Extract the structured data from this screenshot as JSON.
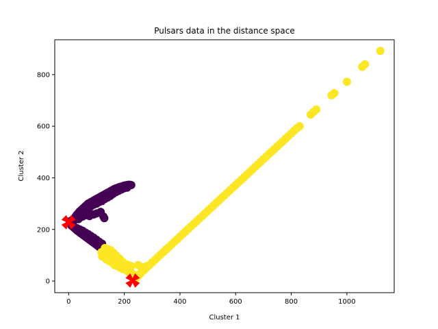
{
  "chart_data": {
    "type": "scatter",
    "title": "Pulsars data in the distance space",
    "xlabel": "Cluster 1",
    "ylabel": "Cluster 2",
    "xlim": [
      -50,
      1170
    ],
    "ylim": [
      -45,
      935
    ],
    "xticks": [
      0,
      200,
      400,
      600,
      800,
      1000
    ],
    "yticks": [
      0,
      200,
      400,
      600,
      800
    ],
    "grid": false,
    "series": [
      {
        "cluster": 0,
        "color": "#440154",
        "points": [
          [
            4,
            232
          ],
          [
            8,
            228
          ],
          [
            12,
            236
          ],
          [
            15,
            224
          ],
          [
            18,
            240
          ],
          [
            22,
            245
          ],
          [
            25,
            250
          ],
          [
            28,
            255
          ],
          [
            32,
            260
          ],
          [
            36,
            265
          ],
          [
            40,
            270
          ],
          [
            45,
            275
          ],
          [
            50,
            280
          ],
          [
            55,
            285
          ],
          [
            60,
            290
          ],
          [
            65,
            295
          ],
          [
            70,
            300
          ],
          [
            75,
            303
          ],
          [
            80,
            306
          ],
          [
            85,
            309
          ],
          [
            90,
            312
          ],
          [
            95,
            315
          ],
          [
            100,
            318
          ],
          [
            105,
            321
          ],
          [
            110,
            324
          ],
          [
            115,
            327
          ],
          [
            120,
            330
          ],
          [
            125,
            333
          ],
          [
            130,
            336
          ],
          [
            135,
            339
          ],
          [
            140,
            342
          ],
          [
            145,
            345
          ],
          [
            150,
            348
          ],
          [
            155,
            351
          ],
          [
            160,
            354
          ],
          [
            165,
            357
          ],
          [
            170,
            359
          ],
          [
            175,
            361
          ],
          [
            180,
            363
          ],
          [
            185,
            365
          ],
          [
            190,
            366
          ],
          [
            195,
            368
          ],
          [
            200,
            370
          ],
          [
            205,
            371
          ],
          [
            210,
            372
          ],
          [
            215,
            373
          ],
          [
            220,
            373
          ],
          [
            225,
            372
          ],
          [
            60,
            265
          ],
          [
            65,
            272
          ],
          [
            70,
            278
          ],
          [
            75,
            285
          ],
          [
            80,
            290
          ],
          [
            90,
            296
          ],
          [
            100,
            300
          ],
          [
            110,
            306
          ],
          [
            120,
            310
          ],
          [
            130,
            318
          ],
          [
            140,
            324
          ],
          [
            150,
            330
          ],
          [
            160,
            338
          ],
          [
            170,
            345
          ],
          [
            180,
            350
          ],
          [
            190,
            355
          ],
          [
            200,
            360
          ],
          [
            210,
            362
          ],
          [
            8,
            220
          ],
          [
            10,
            215
          ],
          [
            14,
            212
          ],
          [
            18,
            208
          ],
          [
            22,
            204
          ],
          [
            26,
            200
          ],
          [
            30,
            196
          ],
          [
            35,
            192
          ],
          [
            40,
            188
          ],
          [
            45,
            184
          ],
          [
            50,
            180
          ],
          [
            55,
            176
          ],
          [
            60,
            172
          ],
          [
            65,
            168
          ],
          [
            70,
            164
          ],
          [
            75,
            160
          ],
          [
            80,
            156
          ],
          [
            85,
            152
          ],
          [
            90,
            148
          ],
          [
            95,
            144
          ],
          [
            100,
            140
          ],
          [
            105,
            136
          ],
          [
            110,
            132
          ],
          [
            115,
            128
          ],
          [
            120,
            124
          ],
          [
            125,
            120
          ],
          [
            130,
            118
          ],
          [
            135,
            116
          ],
          [
            140,
            114
          ],
          [
            145,
            112
          ],
          [
            150,
            112
          ],
          [
            30,
            205
          ],
          [
            40,
            200
          ],
          [
            50,
            195
          ],
          [
            60,
            188
          ],
          [
            70,
            182
          ],
          [
            80,
            175
          ],
          [
            90,
            168
          ],
          [
            100,
            160
          ],
          [
            110,
            152
          ],
          [
            120,
            145
          ],
          [
            125,
            250
          ],
          [
            128,
            244
          ],
          [
            50,
            250
          ],
          [
            40,
            245
          ],
          [
            35,
            240
          ],
          [
            60,
            255
          ],
          [
            75,
            252
          ],
          [
            90,
            258
          ],
          [
            100,
            262
          ],
          [
            115,
            268
          ]
        ]
      },
      {
        "cluster": 1,
        "color": "#fde725",
        "points": [
          [
            118,
            112
          ],
          [
            122,
            108
          ],
          [
            128,
            104
          ],
          [
            132,
            100
          ],
          [
            138,
            98
          ],
          [
            142,
            102
          ],
          [
            148,
            96
          ],
          [
            152,
            92
          ],
          [
            158,
            88
          ],
          [
            162,
            84
          ],
          [
            168,
            80
          ],
          [
            172,
            76
          ],
          [
            178,
            72
          ],
          [
            182,
            68
          ],
          [
            188,
            64
          ],
          [
            192,
            60
          ],
          [
            198,
            56
          ],
          [
            202,
            52
          ],
          [
            208,
            48
          ],
          [
            212,
            44
          ],
          [
            218,
            40
          ],
          [
            222,
            36
          ],
          [
            228,
            30
          ],
          [
            232,
            26
          ],
          [
            236,
            22
          ],
          [
            240,
            18
          ],
          [
            130,
            128
          ],
          [
            140,
            124
          ],
          [
            150,
            120
          ],
          [
            160,
            110
          ],
          [
            170,
            100
          ],
          [
            180,
            90
          ],
          [
            185,
            84
          ],
          [
            195,
            74
          ],
          [
            205,
            66
          ],
          [
            215,
            58
          ],
          [
            120,
            95
          ],
          [
            135,
            85
          ],
          [
            145,
            78
          ],
          [
            155,
            72
          ],
          [
            165,
            62
          ],
          [
            175,
            58
          ],
          [
            185,
            52
          ],
          [
            195,
            46
          ],
          [
            210,
            40
          ],
          [
            220,
            30
          ],
          [
            240,
            10
          ],
          [
            245,
            14
          ],
          [
            250,
            20
          ],
          [
            255,
            26
          ],
          [
            260,
            32
          ],
          [
            270,
            42
          ],
          [
            280,
            52
          ],
          [
            290,
            62
          ],
          [
            300,
            72
          ],
          [
            310,
            82
          ],
          [
            320,
            92
          ],
          [
            330,
            102
          ],
          [
            340,
            112
          ],
          [
            350,
            122
          ],
          [
            360,
            132
          ],
          [
            370,
            142
          ],
          [
            380,
            152
          ],
          [
            390,
            162
          ],
          [
            400,
            172
          ],
          [
            410,
            182
          ],
          [
            420,
            192
          ],
          [
            430,
            202
          ],
          [
            440,
            212
          ],
          [
            450,
            222
          ],
          [
            460,
            232
          ],
          [
            470,
            242
          ],
          [
            480,
            252
          ],
          [
            490,
            262
          ],
          [
            500,
            272
          ],
          [
            510,
            282
          ],
          [
            520,
            292
          ],
          [
            530,
            302
          ],
          [
            540,
            312
          ],
          [
            550,
            322
          ],
          [
            560,
            332
          ],
          [
            570,
            342
          ],
          [
            580,
            352
          ],
          [
            590,
            362
          ],
          [
            600,
            372
          ],
          [
            610,
            382
          ],
          [
            620,
            392
          ],
          [
            630,
            402
          ],
          [
            640,
            412
          ],
          [
            650,
            422
          ],
          [
            660,
            432
          ],
          [
            670,
            442
          ],
          [
            680,
            452
          ],
          [
            690,
            462
          ],
          [
            700,
            472
          ],
          [
            710,
            482
          ],
          [
            720,
            492
          ],
          [
            730,
            502
          ],
          [
            740,
            512
          ],
          [
            750,
            522
          ],
          [
            760,
            532
          ],
          [
            770,
            542
          ],
          [
            780,
            552
          ],
          [
            790,
            562
          ],
          [
            800,
            572
          ],
          [
            810,
            582
          ],
          [
            820,
            592
          ],
          [
            830,
            600
          ],
          [
            870,
            645
          ],
          [
            880,
            655
          ],
          [
            890,
            665
          ],
          [
            945,
            720
          ],
          [
            955,
            728
          ],
          [
            1000,
            772
          ],
          [
            1055,
            830
          ],
          [
            1065,
            840
          ],
          [
            1120,
            892
          ],
          [
            250,
            62
          ],
          [
            260,
            55
          ],
          [
            270,
            50
          ],
          [
            280,
            58
          ],
          [
            225,
            58
          ],
          [
            215,
            62
          ]
        ]
      }
    ],
    "centroids": [
      [
        0,
        228
      ],
      [
        230,
        2
      ]
    ],
    "centroid_color": "#ff0000"
  }
}
